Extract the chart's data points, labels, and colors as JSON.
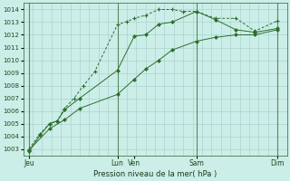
{
  "bg_color": "#cceee8",
  "grid_color": "#aad4ce",
  "line_color": "#2d6e2d",
  "marker_color": "#2d6e2d",
  "xlabel_text": "Pression niveau de la mer( hPa )",
  "ylim": [
    1002.5,
    1014.5
  ],
  "yticks": [
    1003,
    1004,
    1005,
    1006,
    1007,
    1008,
    1009,
    1010,
    1011,
    1012,
    1013,
    1014
  ],
  "xlim": [
    0,
    14.0
  ],
  "xtick_labels": [
    "Jeu",
    "Lun",
    "Ven",
    "Sam",
    "Dim"
  ],
  "xtick_positions": [
    0.3,
    5.0,
    5.9,
    9.2,
    13.5
  ],
  "vline_positions": [
    0.3,
    5.0,
    9.2,
    13.5
  ],
  "series1_x": [
    0.3,
    0.9,
    1.4,
    1.8,
    2.2,
    3.0,
    5.0,
    5.9,
    6.5,
    7.2,
    7.9,
    9.2,
    10.2,
    11.3,
    12.3,
    13.5
  ],
  "series1_y": [
    1002.8,
    1004.1,
    1005.0,
    1005.2,
    1006.1,
    1007.0,
    1009.2,
    1011.9,
    1012.0,
    1012.85,
    1013.0,
    1013.85,
    1013.2,
    1012.4,
    1012.2,
    1012.5
  ],
  "series2_x": [
    0.3,
    0.9,
    1.4,
    1.8,
    2.2,
    2.7,
    3.2,
    3.8,
    5.0,
    5.5,
    5.9,
    6.5,
    7.2,
    7.9,
    8.5,
    9.2,
    10.2,
    11.3,
    12.3,
    13.5
  ],
  "series2_y": [
    1003.0,
    1004.2,
    1005.0,
    1005.2,
    1006.2,
    1007.0,
    1008.0,
    1009.1,
    1012.8,
    1013.05,
    1013.3,
    1013.55,
    1014.0,
    1014.0,
    1013.85,
    1013.85,
    1013.3,
    1013.3,
    1012.3,
    1013.1
  ],
  "series3_x": [
    0.3,
    1.4,
    2.2,
    3.0,
    5.0,
    5.9,
    6.5,
    7.2,
    7.9,
    9.2,
    10.2,
    11.3,
    12.3,
    13.5
  ],
  "series3_y": [
    1002.9,
    1004.6,
    1005.3,
    1006.2,
    1007.3,
    1008.5,
    1009.3,
    1010.0,
    1010.8,
    1011.5,
    1011.8,
    1012.0,
    1012.0,
    1012.4
  ]
}
